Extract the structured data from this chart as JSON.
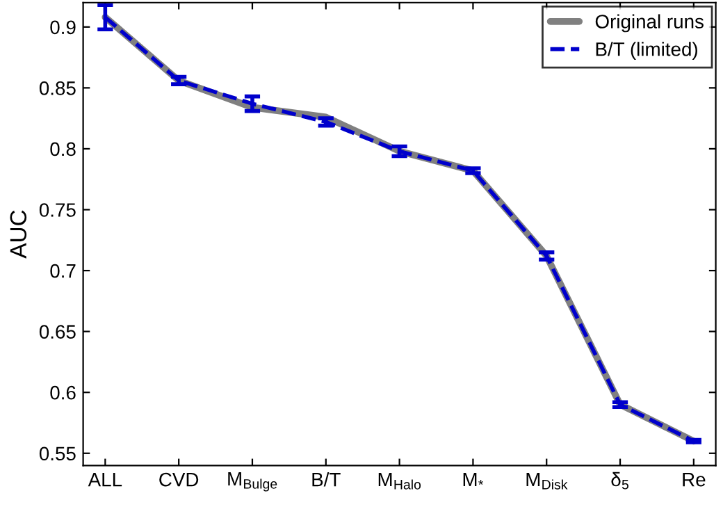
{
  "chart_data": {
    "type": "line",
    "ylabel": "AUC",
    "categories": [
      "ALL",
      "CVD",
      "M$_{Bulge}$",
      "B/T",
      "M$_{Halo}$",
      "M$_{*}$",
      "M$_{Disk}$",
      "δ$_{5}$",
      "Re"
    ],
    "series": [
      {
        "name": "Original runs",
        "color": "#808080",
        "line_style": "solid",
        "values": [
          0.908,
          0.856,
          0.834,
          0.826,
          0.798,
          0.782,
          0.712,
          0.59,
          0.56
        ]
      },
      {
        "name": "B/T (limited)",
        "color": "#0000cc",
        "line_style": "dashed",
        "values": [
          0.908,
          0.856,
          0.837,
          0.822,
          0.798,
          0.782,
          0.712,
          0.59,
          0.56
        ],
        "errors": [
          0.01,
          0.003,
          0.006,
          0.003,
          0.004,
          0.002,
          0.003,
          0.002,
          0.001
        ]
      }
    ],
    "ylim": [
      0.54,
      0.92
    ],
    "yticks": [
      0.55,
      0.6,
      0.65,
      0.7,
      0.75,
      0.8,
      0.85,
      0.9
    ],
    "grid": false,
    "legend": "top right"
  }
}
